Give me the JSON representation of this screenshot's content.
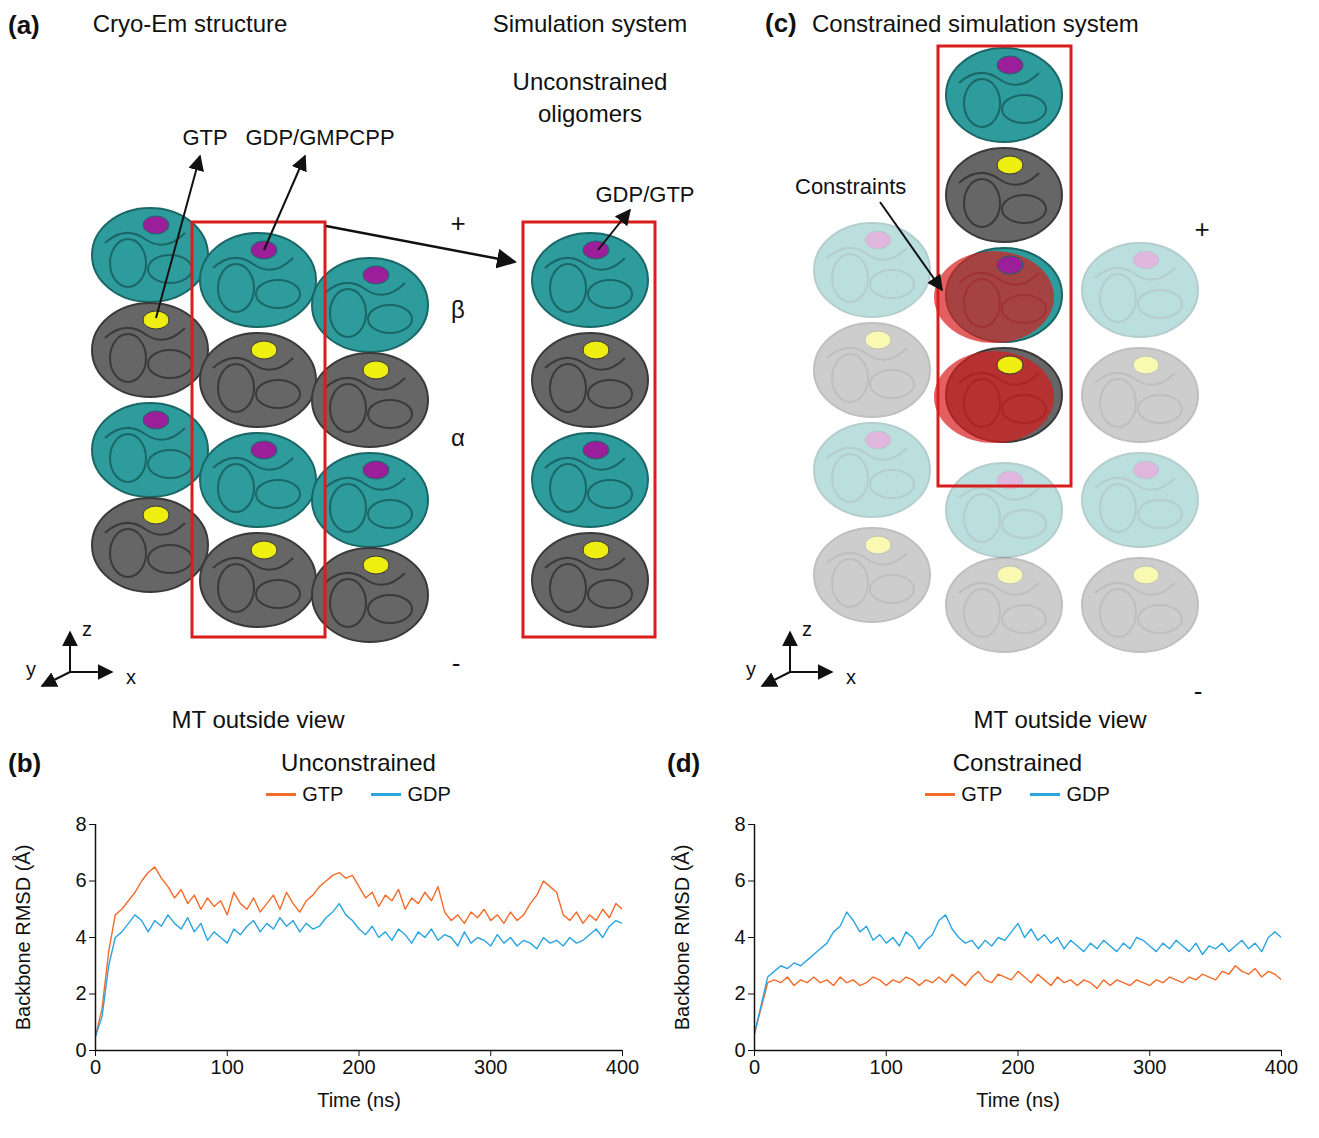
{
  "diagrams": [
    {
      "panel": "(a)",
      "titles": [
        "Cryo-Em structure",
        "Simulation system"
      ],
      "subtitle": "Unconstrained oligomers",
      "labels": {
        "gtp": "GTP",
        "gdp_gmpcpp": "GDP/GMPCPP",
        "gdp_gtp": "GDP/GTP",
        "beta": "β",
        "alpha": "α",
        "plus": "+",
        "minus": "-"
      },
      "axes": {
        "z": "z",
        "y": "y",
        "x": "x"
      },
      "caption": "MT outside view"
    },
    {
      "panel": "(c)",
      "titles": [
        "Constrained simulation system"
      ],
      "labels": {
        "constraints": "Constraints",
        "plus": "+",
        "minus": "-"
      },
      "axes": {
        "z": "z",
        "y": "y",
        "x": "x"
      },
      "caption": "MT outside view"
    }
  ],
  "chart_data": [
    {
      "panel": "(b)",
      "type": "line",
      "title": "Unconstrained",
      "x_label": "Time (ns)",
      "y_label": "Backbone RMSD (Å)",
      "x": [
        0,
        5,
        10,
        15,
        20,
        25,
        30,
        35,
        40,
        45,
        50,
        55,
        60,
        65,
        70,
        75,
        80,
        85,
        90,
        95,
        100,
        105,
        110,
        115,
        120,
        125,
        130,
        135,
        140,
        145,
        150,
        155,
        160,
        165,
        170,
        175,
        180,
        185,
        190,
        195,
        200,
        205,
        210,
        215,
        220,
        225,
        230,
        235,
        240,
        245,
        250,
        255,
        260,
        265,
        270,
        275,
        280,
        285,
        290,
        295,
        300,
        305,
        310,
        315,
        320,
        325,
        330,
        335,
        340,
        345,
        350,
        355,
        360,
        365,
        370,
        375,
        380,
        385,
        390,
        395,
        400
      ],
      "series": [
        {
          "name": "GTP",
          "color": "#f26b2a",
          "values": [
            0.5,
            1.5,
            3.5,
            4.8,
            5.0,
            5.3,
            5.6,
            6.0,
            6.3,
            6.5,
            6.1,
            5.8,
            5.4,
            5.7,
            5.2,
            5.5,
            5.0,
            5.4,
            5.1,
            5.3,
            4.8,
            5.6,
            5.2,
            5.0,
            5.4,
            4.9,
            5.2,
            5.5,
            5.0,
            5.6,
            5.2,
            4.9,
            5.3,
            5.5,
            5.8,
            6.0,
            6.2,
            6.3,
            6.1,
            6.2,
            5.8,
            5.4,
            5.6,
            5.1,
            5.5,
            5.3,
            5.7,
            5.0,
            5.4,
            5.2,
            5.6,
            5.3,
            5.8,
            4.9,
            4.6,
            4.8,
            4.5,
            4.9,
            4.7,
            5.0,
            4.6,
            4.8,
            4.5,
            4.9,
            4.6,
            4.8,
            5.2,
            5.5,
            6.0,
            5.8,
            5.6,
            4.8,
            4.6,
            4.9,
            4.5,
            4.8,
            4.6,
            5.0,
            4.7,
            5.2,
            5.0
          ]
        },
        {
          "name": "GDP",
          "color": "#2aa5e0",
          "values": [
            0.5,
            1.2,
            3.0,
            4.0,
            4.2,
            4.5,
            4.8,
            4.6,
            4.2,
            4.6,
            4.4,
            4.8,
            4.5,
            4.3,
            4.7,
            4.2,
            4.5,
            3.9,
            4.2,
            4.0,
            3.8,
            4.3,
            4.1,
            4.4,
            4.6,
            4.2,
            4.5,
            4.3,
            4.7,
            4.4,
            4.6,
            4.2,
            4.5,
            4.3,
            4.4,
            4.7,
            4.9,
            5.2,
            4.8,
            4.6,
            4.3,
            4.1,
            4.4,
            4.0,
            4.2,
            3.9,
            4.3,
            4.1,
            3.8,
            4.2,
            4.0,
            4.3,
            3.9,
            4.1,
            4.0,
            3.7,
            4.2,
            3.8,
            4.0,
            3.9,
            3.7,
            4.1,
            3.8,
            4.0,
            3.7,
            3.9,
            3.8,
            3.6,
            4.0,
            3.8,
            3.9,
            3.7,
            4.0,
            3.8,
            3.9,
            4.1,
            4.3,
            4.0,
            4.4,
            4.6,
            4.5
          ]
        }
      ],
      "xlim": [
        0,
        400
      ],
      "xticks": [
        0,
        100,
        200,
        300,
        400
      ],
      "ylim": [
        0,
        8
      ],
      "yticks": [
        0,
        2,
        4,
        6,
        8
      ],
      "legend": "top",
      "grid": false
    },
    {
      "panel": "(d)",
      "type": "line",
      "title": "Constrained",
      "x_label": "Time (ns)",
      "y_label": "Backbone RMSD (Å)",
      "x": [
        0,
        5,
        10,
        15,
        20,
        25,
        30,
        35,
        40,
        45,
        50,
        55,
        60,
        65,
        70,
        75,
        80,
        85,
        90,
        95,
        100,
        105,
        110,
        115,
        120,
        125,
        130,
        135,
        140,
        145,
        150,
        155,
        160,
        165,
        170,
        175,
        180,
        185,
        190,
        195,
        200,
        205,
        210,
        215,
        220,
        225,
        230,
        235,
        240,
        245,
        250,
        255,
        260,
        265,
        270,
        275,
        280,
        285,
        290,
        295,
        300,
        305,
        310,
        315,
        320,
        325,
        330,
        335,
        340,
        345,
        350,
        355,
        360,
        365,
        370,
        375,
        380,
        385,
        390,
        395,
        400
      ],
      "series": [
        {
          "name": "GTP",
          "color": "#f26b2a",
          "values": [
            0.6,
            1.5,
            2.4,
            2.5,
            2.4,
            2.6,
            2.3,
            2.5,
            2.4,
            2.6,
            2.4,
            2.5,
            2.3,
            2.6,
            2.4,
            2.5,
            2.3,
            2.4,
            2.6,
            2.5,
            2.3,
            2.5,
            2.4,
            2.6,
            2.5,
            2.3,
            2.5,
            2.4,
            2.6,
            2.4,
            2.7,
            2.5,
            2.3,
            2.6,
            2.8,
            2.5,
            2.4,
            2.7,
            2.6,
            2.5,
            2.8,
            2.6,
            2.4,
            2.7,
            2.5,
            2.3,
            2.6,
            2.4,
            2.5,
            2.3,
            2.5,
            2.4,
            2.2,
            2.5,
            2.3,
            2.5,
            2.4,
            2.3,
            2.5,
            2.4,
            2.3,
            2.5,
            2.4,
            2.6,
            2.5,
            2.4,
            2.6,
            2.5,
            2.7,
            2.6,
            2.5,
            2.8,
            2.7,
            3.0,
            2.8,
            2.7,
            2.9,
            2.6,
            2.8,
            2.7,
            2.5
          ]
        },
        {
          "name": "GDP",
          "color": "#2aa5e0",
          "values": [
            0.6,
            1.6,
            2.6,
            2.8,
            3.0,
            2.9,
            3.1,
            3.0,
            3.2,
            3.4,
            3.6,
            3.8,
            4.2,
            4.4,
            4.9,
            4.6,
            4.2,
            4.4,
            3.9,
            4.1,
            3.8,
            4.0,
            3.7,
            4.2,
            4.0,
            3.6,
            3.9,
            4.1,
            4.6,
            4.8,
            4.3,
            4.0,
            3.8,
            3.9,
            3.6,
            3.9,
            3.7,
            4.0,
            3.9,
            4.2,
            4.5,
            4.0,
            4.3,
            3.9,
            4.1,
            3.8,
            4.0,
            3.6,
            3.9,
            3.7,
            3.5,
            3.8,
            3.6,
            3.9,
            3.7,
            3.5,
            3.8,
            3.6,
            4.0,
            3.9,
            3.7,
            3.5,
            3.8,
            3.6,
            3.9,
            3.7,
            3.5,
            3.8,
            3.4,
            3.7,
            3.6,
            3.8,
            3.5,
            3.7,
            3.9,
            3.6,
            3.8,
            3.5,
            4.0,
            4.2,
            4.0
          ]
        }
      ],
      "xlim": [
        0,
        400
      ],
      "xticks": [
        0,
        100,
        200,
        300,
        400
      ],
      "ylim": [
        0,
        8
      ],
      "yticks": [
        0,
        2,
        4,
        6,
        8
      ],
      "legend": "top",
      "grid": false
    }
  ]
}
